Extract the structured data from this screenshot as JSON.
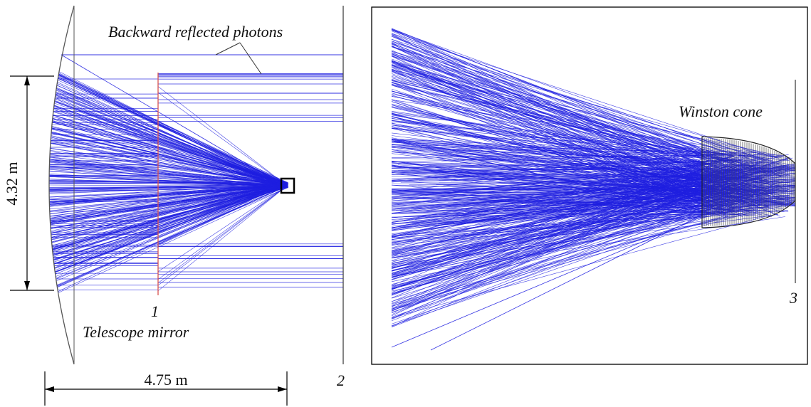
{
  "left_panel": {
    "annotation_backward": "Backward reflected photons",
    "mirror_label": "Telescope mirror",
    "plane1_label": "1",
    "plane2_label": "2",
    "height_dim": "4.32 m",
    "focal_dim": "4.75 m"
  },
  "right_panel": {
    "winston_label": "Winston cone",
    "plane3_label": "3"
  },
  "colors": {
    "ray": "#1f1fe0",
    "plane_red": "#d9534f",
    "cone": "#444444",
    "frame": "#000000"
  }
}
